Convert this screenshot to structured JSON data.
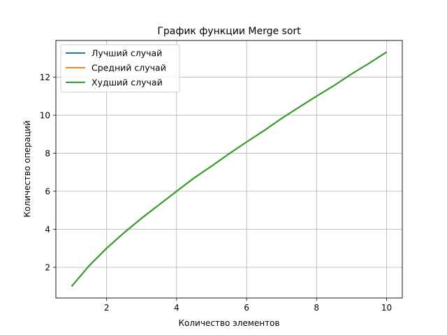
{
  "chart_data": {
    "type": "line",
    "title": "График функции Merge sort",
    "xlabel": "Количество элементов",
    "ylabel": "Количество операций",
    "xlim": [
      0.55,
      10.45
    ],
    "ylim": [
      0.385,
      13.93
    ],
    "xticks": [
      2,
      4,
      6,
      8,
      10
    ],
    "yticks": [
      2,
      4,
      6,
      8,
      10,
      12
    ],
    "grid": true,
    "legend_position": "upper-left",
    "x": [
      1,
      1.5,
      2,
      2.5,
      3,
      3.5,
      4,
      4.5,
      5,
      5.5,
      6,
      6.5,
      7,
      7.5,
      8,
      8.5,
      9,
      9.5,
      10
    ],
    "series": [
      {
        "name": "Лучший случай",
        "color": "#1f77b4",
        "values": [
          1.0,
          2.08,
          3.0,
          3.82,
          4.58,
          5.29,
          6.0,
          6.7,
          7.32,
          7.97,
          8.59,
          9.19,
          9.83,
          10.42,
          11.0,
          11.56,
          12.17,
          12.73,
          13.32
        ]
      },
      {
        "name": "Средний случай",
        "color": "#ff7f0e",
        "values": [
          1.0,
          2.08,
          3.0,
          3.82,
          4.58,
          5.29,
          6.0,
          6.7,
          7.32,
          7.97,
          8.59,
          9.19,
          9.83,
          10.42,
          11.0,
          11.56,
          12.17,
          12.73,
          13.32
        ]
      },
      {
        "name": "Худший случай",
        "color": "#2ca02c",
        "values": [
          1.0,
          2.08,
          3.0,
          3.82,
          4.58,
          5.29,
          6.0,
          6.7,
          7.32,
          7.97,
          8.59,
          9.19,
          9.83,
          10.42,
          11.0,
          11.56,
          12.17,
          12.73,
          13.32
        ]
      }
    ]
  }
}
